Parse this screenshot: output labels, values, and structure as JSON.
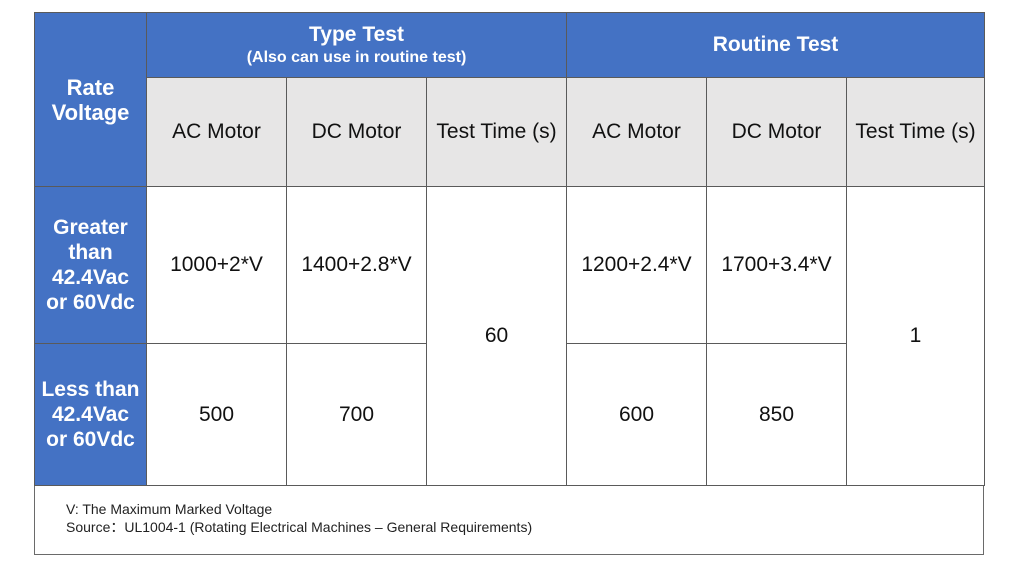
{
  "header": {
    "rate_voltage": [
      "Rate",
      "Voltage"
    ],
    "type_test_title": "Type Test",
    "type_test_subtitle": "(Also can use in routine test)",
    "routine_test_title": "Routine Test",
    "columns": [
      "AC Motor",
      "DC Motor",
      "Test Time (s)",
      "AC Motor",
      "DC Motor",
      "Test Time (s)"
    ]
  },
  "rows": [
    {
      "label": [
        "Greater",
        "than",
        "42.4Vac",
        "or 60Vdc"
      ],
      "type_ac": "1000+2*V",
      "type_dc": "1400+2.8*V",
      "routine_ac": "1200+2.4*V",
      "routine_dc": "1700+3.4*V"
    },
    {
      "label": [
        "Less than",
        "42.4Vac",
        "or 60Vdc"
      ],
      "type_ac": "500",
      "type_dc": "700",
      "routine_ac": "600",
      "routine_dc": "850"
    }
  ],
  "type_test_time": "60",
  "routine_test_time": "1",
  "notes": {
    "definition": "V: The Maximum Marked Voltage",
    "source": "Source：UL1004-1 (Rotating Electrical Machines – General Requirements)"
  },
  "colors": {
    "header_blue": "#4472c4",
    "subheader_grey": "#e7e6e6"
  }
}
